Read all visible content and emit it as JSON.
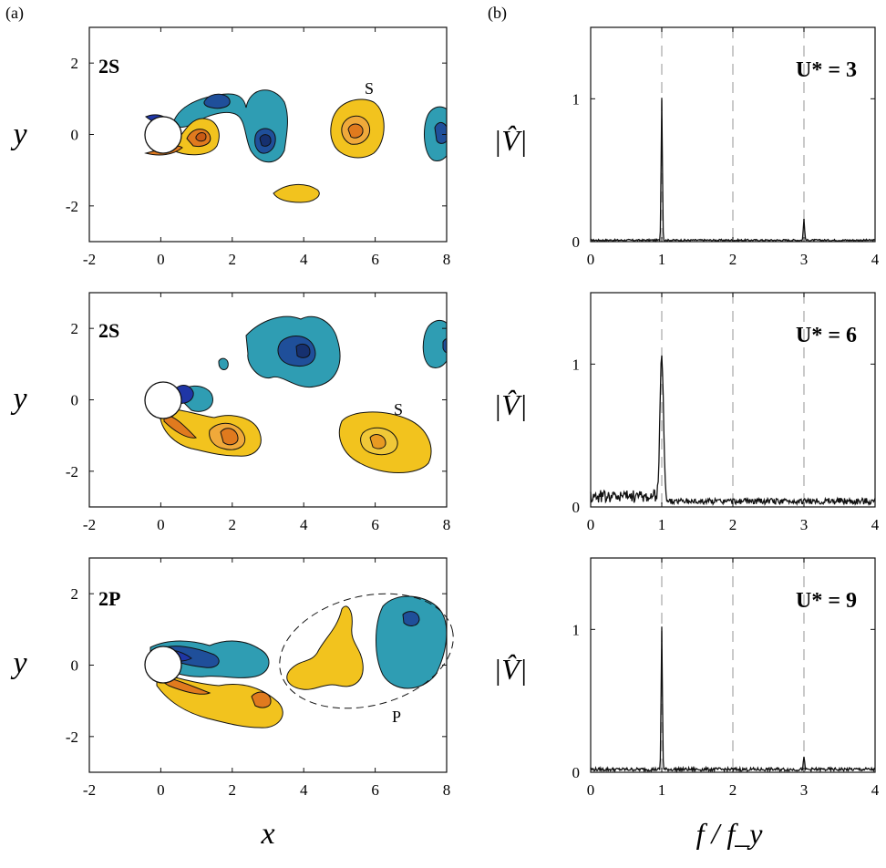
{
  "figure": {
    "left_panel_label": "(a)",
    "right_panel_label": "(b)",
    "left_xlabel": "x",
    "left_ylabel": "y",
    "right_xlabel": "f / f_y",
    "right_ylabel": "|V̂|"
  },
  "left_axes": {
    "xticks": [
      "-2",
      "0",
      "2",
      "4",
      "6",
      "8"
    ],
    "yticks": [
      "2",
      "0",
      "-2"
    ]
  },
  "right_axes": {
    "xticks": [
      "0",
      "1",
      "2",
      "3",
      "4"
    ],
    "yticks": [
      "1",
      "0"
    ]
  },
  "chart_data": [
    {
      "type": "heatmap",
      "panel": "a1",
      "mode_label": "2S",
      "annotation": "S",
      "xlabel": "x",
      "ylabel": "y",
      "xlim": [
        -2,
        8
      ],
      "ylim": [
        -3,
        3
      ],
      "colors": {
        "negative": "#2f9db3",
        "negative_core": "#1f4f9a",
        "positive": "#f2c31e",
        "positive_core": "#e07a1e",
        "cylinder": "#1f36a6"
      }
    },
    {
      "type": "heatmap",
      "panel": "a2",
      "mode_label": "2S",
      "annotation": "S",
      "xlabel": "x",
      "ylabel": "y",
      "xlim": [
        -2,
        8
      ],
      "ylim": [
        -3,
        3
      ]
    },
    {
      "type": "heatmap",
      "panel": "a3",
      "mode_label": "2P",
      "annotation": "P",
      "xlabel": "x",
      "ylabel": "y",
      "xlim": [
        -2,
        8
      ],
      "ylim": [
        -3,
        3
      ]
    },
    {
      "type": "line",
      "panel": "b1",
      "label": "U* = 3",
      "xlim": [
        0,
        4
      ],
      "ylim": [
        0,
        1.5
      ],
      "dashed_lines": [
        1,
        2,
        3
      ],
      "peaks": [
        {
          "x": 1.0,
          "y": 1.0
        },
        {
          "x": 3.0,
          "y": 0.15
        }
      ],
      "baseline": 0.01
    },
    {
      "type": "line",
      "panel": "b2",
      "label": "U* = 6",
      "xlim": [
        0,
        4
      ],
      "ylim": [
        0,
        1.5
      ],
      "dashed_lines": [
        1,
        2,
        3
      ],
      "peaks": [
        {
          "x": 1.0,
          "y": 1.0
        }
      ],
      "baseline": 0.04
    },
    {
      "type": "line",
      "panel": "b3",
      "label": "U* = 9",
      "xlim": [
        0,
        4
      ],
      "ylim": [
        0,
        1.5
      ],
      "dashed_lines": [
        1,
        2,
        3
      ],
      "peaks": [
        {
          "x": 1.0,
          "y": 1.0
        },
        {
          "x": 3.0,
          "y": 0.08
        }
      ],
      "baseline": 0.02
    }
  ]
}
